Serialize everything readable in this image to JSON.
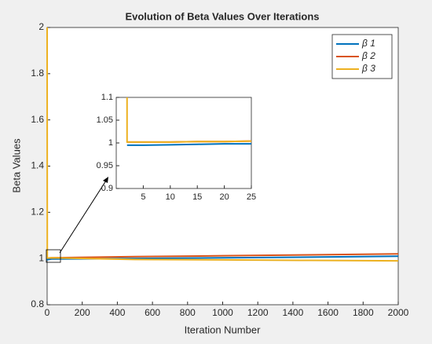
{
  "chart_data": [
    {
      "type": "line",
      "title": "Evolution of Beta Values Over Iterations",
      "x_label": "Iteration Number",
      "y_label": "Beta Values",
      "x": [
        0,
        1,
        25,
        500,
        1000,
        1500,
        2000
      ],
      "series": [
        {
          "name": "β 1",
          "color": "#0072bd",
          "values": [
            1,
            0.995,
            0.998,
            1.0,
            1.003,
            1.006,
            1.01
          ]
        },
        {
          "name": "β 2",
          "color": "#d95319",
          "values": [
            1,
            1.002,
            1.003,
            1.008,
            1.012,
            1.016,
            1.02
          ]
        },
        {
          "name": "β 3",
          "color": "#edb120",
          "values": [
            2,
            1.002,
            1.003,
            0.996,
            0.994,
            0.992,
            0.99
          ]
        }
      ],
      "xlim": [
        0,
        2000
      ],
      "xticks": [
        0,
        200,
        400,
        600,
        800,
        1000,
        1200,
        1400,
        1600,
        1800,
        2000
      ],
      "ylim": [
        0.8,
        2
      ],
      "yticks": [
        0.8,
        1,
        1.2,
        1.4,
        1.6,
        1.8,
        2
      ],
      "legend": "upper right"
    },
    {
      "type": "line",
      "x": [
        2,
        2,
        5,
        10,
        15,
        20,
        25
      ],
      "series": [
        {
          "color": "#0072bd",
          "values": [
            0.995,
            0.995,
            0.995,
            0.996,
            0.997,
            0.998,
            0.998
          ]
        },
        {
          "color": "#d95319",
          "values": [
            1.002,
            1.002,
            1.002,
            1.002,
            1.003,
            1.003,
            1.004
          ]
        },
        {
          "color": "#edb120",
          "values": [
            1.1,
            1.002,
            1.002,
            1.002,
            1.003,
            1.003,
            1.004
          ]
        }
      ],
      "xlim": [
        0,
        25
      ],
      "xticks": [
        5,
        10,
        15,
        20,
        25
      ],
      "ylim": [
        0.9,
        1.1
      ],
      "yticks": [
        0.9,
        0.95,
        1,
        1.05,
        1.1
      ]
    }
  ]
}
